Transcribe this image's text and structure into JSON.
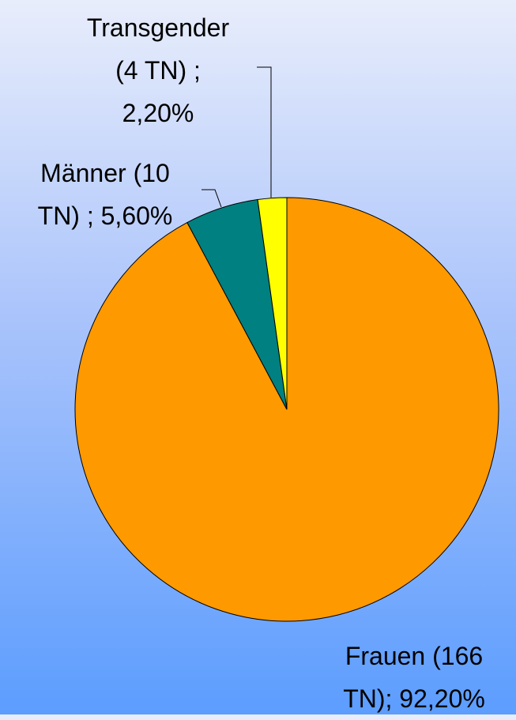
{
  "chart_data": {
    "type": "pie",
    "values": [
      92.2,
      5.6,
      2.2
    ],
    "value_labels": [
      "Frauen (166 TN); 92,20%",
      "Männer (10 TN) ; 5,60%",
      "Transgender (4 TN) ; 2,20%"
    ],
    "colors": [
      "#ff9900",
      "#008080",
      "#ffff00"
    ]
  }
}
